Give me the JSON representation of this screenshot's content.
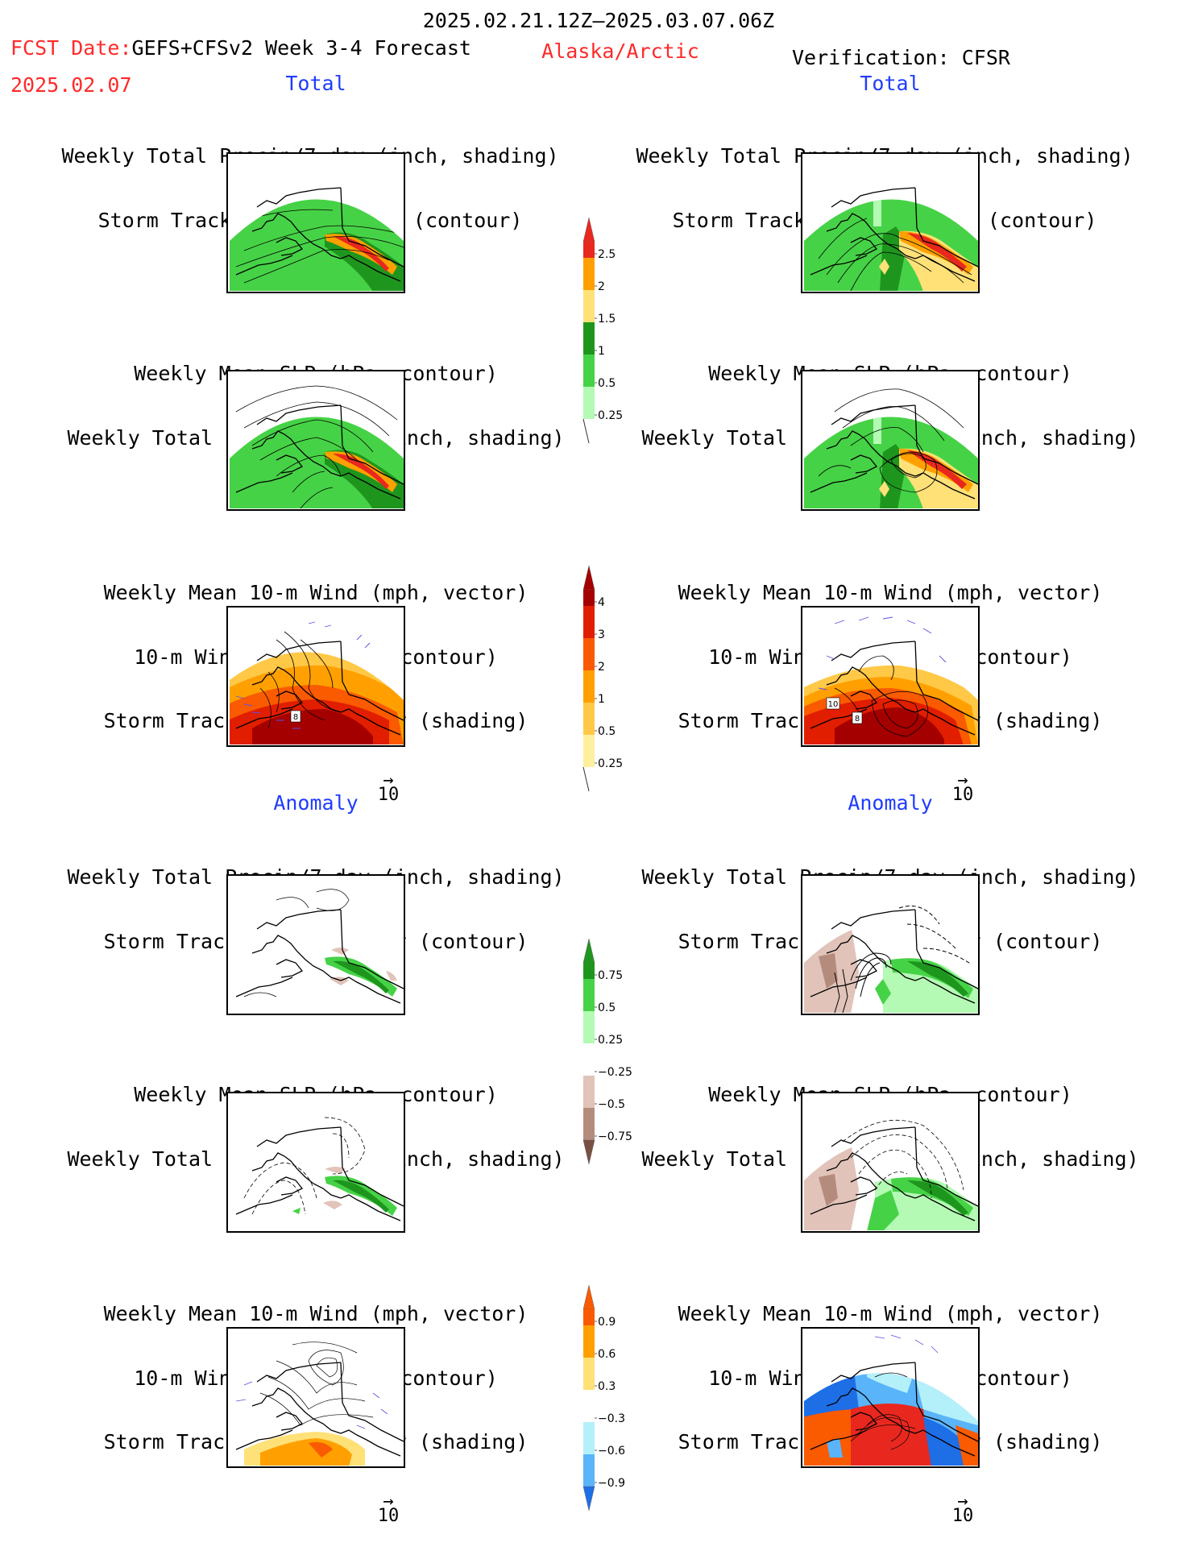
{
  "header": {
    "period": "2025.02.21.12Z–2025.03.07.06Z",
    "fcst_date_label": "FCST Date:",
    "fcst_date": "2025.02.07",
    "model": "GEFS+CFSv2 Week 3-4 Forecast",
    "region": "Alaska/Arctic",
    "verification": "Verification: CFSR"
  },
  "sections": {
    "total": "Total",
    "anomaly": "Anomaly"
  },
  "panel_titles": {
    "precip_storm": [
      "Weekly Total Precip/7-day (inch, shading)",
      "Storm Track Density/7-day (contour)"
    ],
    "slp_precip": [
      "Weekly Mean SLP (hPa, contour)",
      "Weekly Total Precip/7-day (inch, shading)"
    ],
    "wind_storm": [
      "Weekly Mean 10-m Wind (mph, vector)",
      "10-m Wind Speed (mph, contour)",
      "Storm Track Density/7-day (shading)"
    ]
  },
  "vector_scale": "10",
  "contour_labels": {
    "left_wind_total": "8",
    "right_wind_total": [
      "10",
      "8"
    ]
  },
  "colorbars": {
    "precip_total": {
      "labels": [
        "2.5",
        "2",
        "1.5",
        "1",
        "0.5",
        "0.25"
      ],
      "colors": [
        "#e8281e",
        "#ffa000",
        "#ffe178",
        "#1e961e",
        "#46d246",
        "#b4fab4"
      ]
    },
    "storm_total": {
      "labels": [
        "4",
        "3",
        "2",
        "1",
        "0.5",
        "0.25"
      ],
      "colors": [
        "#a50000",
        "#e11e00",
        "#fa5a00",
        "#ffa000",
        "#ffc846",
        "#fff0a0"
      ]
    },
    "precip_anom": {
      "labels": [
        "0.75",
        "0.5",
        "0.25",
        "−0.25",
        "−0.5",
        "−0.75"
      ],
      "colors": [
        "#1e961e",
        "#46d246",
        "#b4fab4",
        "#ffffff",
        "#e1c3b9",
        "#b48c7d",
        "#785041"
      ]
    },
    "storm_anom": {
      "labels": [
        "0.9",
        "0.6",
        "0.3",
        "−0.3",
        "−0.6",
        "−0.9"
      ],
      "colors": [
        "#fa5a00",
        "#ffa000",
        "#ffe178",
        "#ffffff",
        "#b4f0fa",
        "#5ab4fa",
        "#1e6ee6"
      ]
    }
  }
}
